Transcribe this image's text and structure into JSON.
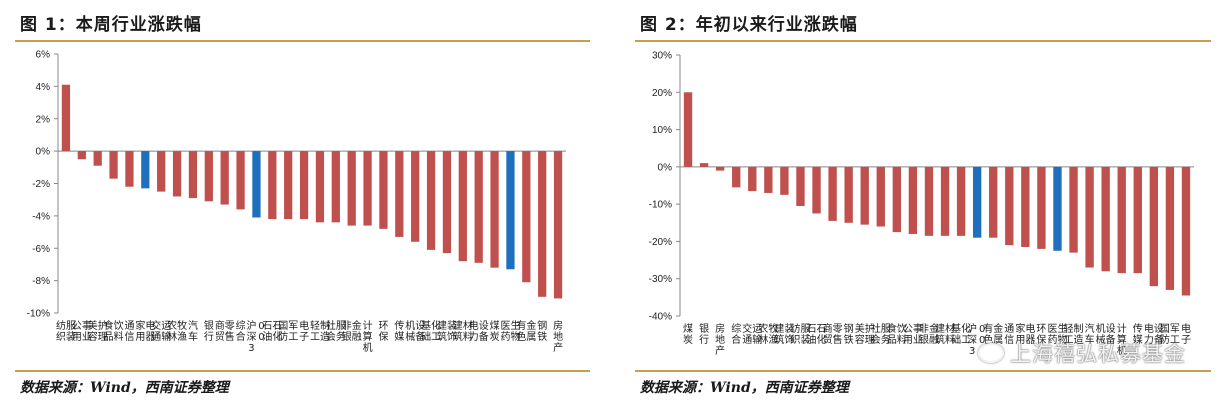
{
  "left": {
    "title": "图 1：本周行业涨跌幅",
    "source": "数据来源：Wind，西南证券整理"
  },
  "right": {
    "title": "图 2：年初以来行业涨跌幅",
    "source": "数据来源：Wind，西南证券整理"
  },
  "watermark": "上海禧弘私募基金",
  "colors": {
    "bar": "#c0504d",
    "highlight": "#1f6fbf",
    "rule": "#c8a04a"
  },
  "chart_data": [
    {
      "type": "bar",
      "ylim": [
        -10,
        6
      ],
      "yticks": [
        6,
        4,
        2,
        0,
        -2,
        -4,
        -6,
        -8,
        -10
      ],
      "tick_format": "%",
      "categories": [
        "纺织服装",
        "公用事业",
        "美容护理",
        "食品饮料",
        "通信",
        "家用电器",
        "交通运输",
        "农林牧渔",
        "汽车",
        "银行",
        "商贸零售",
        "综合",
        "沪深300",
        "石油石化",
        "国防军工",
        "电子",
        "轻工制造",
        "社会服务",
        "非银金融",
        "计算机",
        "环保",
        "传媒",
        "机械设备",
        "基础化工",
        "建筑装饰",
        "建筑材料",
        "电力设备",
        "煤炭",
        "医药生物",
        "有色金属",
        "钢铁",
        "房地产"
      ],
      "values": [
        4.1,
        -0.5,
        -0.9,
        -1.7,
        -2.2,
        -2.3,
        -2.5,
        -2.8,
        -2.9,
        -3.1,
        -3.3,
        -3.6,
        -4.1,
        -4.2,
        -4.2,
        -4.2,
        -4.4,
        -4.4,
        -4.6,
        -4.6,
        -4.8,
        -5.3,
        -5.6,
        -6.1,
        -6.3,
        -6.8,
        -6.9,
        -7.2,
        -7.3,
        -8.1,
        -9.0,
        -9.1
      ],
      "highlight": [
        "家用电器",
        "沪深300",
        "医药生物"
      ]
    },
    {
      "type": "bar",
      "ylim": [
        -40,
        30
      ],
      "yticks": [
        30,
        20,
        10,
        0,
        -10,
        -20,
        -30,
        -40
      ],
      "tick_format": "%",
      "categories": [
        "煤炭",
        "银行",
        "房地产",
        "综合",
        "交通运输",
        "农林牧渔",
        "建筑装饰",
        "纺织服装",
        "石油石化",
        "商贸零售",
        "钢铁",
        "美容护理",
        "社会服务",
        "食品饮料",
        "公用事业",
        "非银金融",
        "建筑材料",
        "基础化工",
        "沪深300",
        "有色金属",
        "通信",
        "家用电器",
        "环保",
        "医药生物",
        "轻工制造",
        "汽车",
        "机械设备",
        "计算机",
        "传媒",
        "电力设备",
        "国防军工",
        "电子"
      ],
      "values": [
        20,
        1,
        -1,
        -5.5,
        -6.5,
        -7,
        -7.5,
        -10.5,
        -12.5,
        -14.5,
        -15,
        -15.5,
        -16,
        -17.5,
        -18,
        -18.5,
        -18.5,
        -18.5,
        -19,
        -19,
        -21,
        -21.5,
        -22,
        -22.5,
        -23,
        -27,
        -28,
        -28.5,
        -28.5,
        -32,
        -33,
        -34.5
      ],
      "highlight": [
        "沪深300",
        "医药生物"
      ]
    }
  ]
}
